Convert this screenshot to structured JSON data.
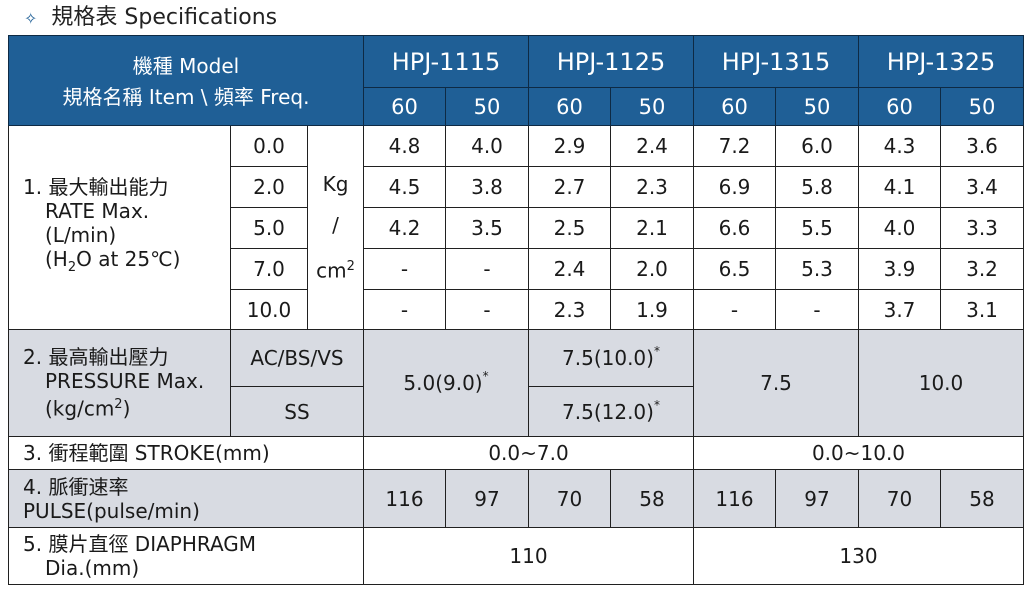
{
  "section": {
    "bullet": "✧",
    "title": "規格表  Specifications"
  },
  "header": {
    "model_label": "機種 Model",
    "item_label": "規格名稱 Item \\ 頻率 Freq.",
    "models": [
      "HPJ-1115",
      "HPJ-1125",
      "HPJ-1315",
      "HPJ-1325"
    ],
    "freqs": [
      "60",
      "50",
      "60",
      "50",
      "60",
      "50",
      "60",
      "50"
    ]
  },
  "rate": {
    "label_line1": "1.  最大輸出能力",
    "label_line2": "RATE Max.",
    "label_line3": "(L/min)",
    "label_line4_pre": "(H",
    "label_line4_sub": "2",
    "label_line4_post": "O at 25℃)",
    "unit_line1": "Kg",
    "unit_line2": "/",
    "unit_line3": "cm",
    "unit_sup": "2",
    "rows": [
      {
        "pressure": "0.0",
        "values": [
          "4.8",
          "4.0",
          "2.9",
          "2.4",
          "7.2",
          "6.0",
          "4.3",
          "3.6"
        ]
      },
      {
        "pressure": "2.0",
        "values": [
          "4.5",
          "3.8",
          "2.7",
          "2.3",
          "6.9",
          "5.8",
          "4.1",
          "3.4"
        ]
      },
      {
        "pressure": "5.0",
        "values": [
          "4.2",
          "3.5",
          "2.5",
          "2.1",
          "6.6",
          "5.5",
          "4.0",
          "3.3"
        ]
      },
      {
        "pressure": "7.0",
        "values": [
          "-",
          "-",
          "2.4",
          "2.0",
          "6.5",
          "5.3",
          "3.9",
          "3.2"
        ]
      },
      {
        "pressure": "10.0",
        "values": [
          "-",
          "-",
          "2.3",
          "1.9",
          "-",
          "-",
          "3.7",
          "3.1"
        ]
      }
    ]
  },
  "pressure": {
    "label_line1": "2.  最高輸出壓力",
    "label_line2": "PRESSURE Max.",
    "label_line3_pre": "(kg/cm",
    "label_line3_sup": "2",
    "label_line3_post": ")",
    "type_ac": "AC/BS/VS",
    "type_ss": "SS",
    "hpj1115": "5.0(9.0)",
    "hpj1125_ac": "7.5(10.0)",
    "hpj1125_ss": "7.5(12.0)",
    "hpj1315": "7.5",
    "hpj1325": "10.0",
    "star": "*"
  },
  "stroke": {
    "label": "3.  衝程範圍  STROKE(mm)",
    "group1": "0.0~7.0",
    "group2": "0.0~10.0"
  },
  "pulse": {
    "label_line1": "4.  脈衝速率",
    "label_line2": "PULSE(pulse/min)",
    "values": [
      "116",
      "97",
      "70",
      "58",
      "116",
      "97",
      "70",
      "58"
    ]
  },
  "diaphragm": {
    "label_line1": "5.  膜片直徑  DIAPHRAGM",
    "label_line2": "Dia.(mm)",
    "group1": "110",
    "group2": "130"
  }
}
